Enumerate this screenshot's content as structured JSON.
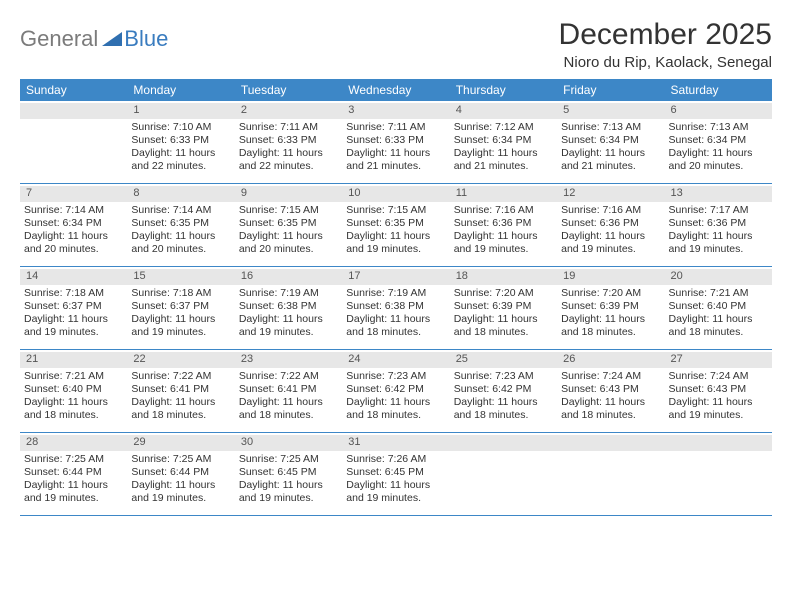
{
  "brand": {
    "gray": "General",
    "blue": "Blue"
  },
  "title": "December 2025",
  "location": "Nioro du Rip, Kaolack, Senegal",
  "colors": {
    "header_bg": "#3d87c7",
    "daynum_bg": "#e7e7e7",
    "border": "#3d87c7",
    "logo_gray": "#7b7b7b",
    "logo_blue": "#3a7cbf"
  },
  "dow": [
    "Sunday",
    "Monday",
    "Tuesday",
    "Wednesday",
    "Thursday",
    "Friday",
    "Saturday"
  ],
  "weeks": [
    [
      {
        "n": "",
        "sr": "",
        "ss": "",
        "dl": ""
      },
      {
        "n": "1",
        "sr": "Sunrise: 7:10 AM",
        "ss": "Sunset: 6:33 PM",
        "dl": "Daylight: 11 hours and 22 minutes."
      },
      {
        "n": "2",
        "sr": "Sunrise: 7:11 AM",
        "ss": "Sunset: 6:33 PM",
        "dl": "Daylight: 11 hours and 22 minutes."
      },
      {
        "n": "3",
        "sr": "Sunrise: 7:11 AM",
        "ss": "Sunset: 6:33 PM",
        "dl": "Daylight: 11 hours and 21 minutes."
      },
      {
        "n": "4",
        "sr": "Sunrise: 7:12 AM",
        "ss": "Sunset: 6:34 PM",
        "dl": "Daylight: 11 hours and 21 minutes."
      },
      {
        "n": "5",
        "sr": "Sunrise: 7:13 AM",
        "ss": "Sunset: 6:34 PM",
        "dl": "Daylight: 11 hours and 21 minutes."
      },
      {
        "n": "6",
        "sr": "Sunrise: 7:13 AM",
        "ss": "Sunset: 6:34 PM",
        "dl": "Daylight: 11 hours and 20 minutes."
      }
    ],
    [
      {
        "n": "7",
        "sr": "Sunrise: 7:14 AM",
        "ss": "Sunset: 6:34 PM",
        "dl": "Daylight: 11 hours and 20 minutes."
      },
      {
        "n": "8",
        "sr": "Sunrise: 7:14 AM",
        "ss": "Sunset: 6:35 PM",
        "dl": "Daylight: 11 hours and 20 minutes."
      },
      {
        "n": "9",
        "sr": "Sunrise: 7:15 AM",
        "ss": "Sunset: 6:35 PM",
        "dl": "Daylight: 11 hours and 20 minutes."
      },
      {
        "n": "10",
        "sr": "Sunrise: 7:15 AM",
        "ss": "Sunset: 6:35 PM",
        "dl": "Daylight: 11 hours and 19 minutes."
      },
      {
        "n": "11",
        "sr": "Sunrise: 7:16 AM",
        "ss": "Sunset: 6:36 PM",
        "dl": "Daylight: 11 hours and 19 minutes."
      },
      {
        "n": "12",
        "sr": "Sunrise: 7:16 AM",
        "ss": "Sunset: 6:36 PM",
        "dl": "Daylight: 11 hours and 19 minutes."
      },
      {
        "n": "13",
        "sr": "Sunrise: 7:17 AM",
        "ss": "Sunset: 6:36 PM",
        "dl": "Daylight: 11 hours and 19 minutes."
      }
    ],
    [
      {
        "n": "14",
        "sr": "Sunrise: 7:18 AM",
        "ss": "Sunset: 6:37 PM",
        "dl": "Daylight: 11 hours and 19 minutes."
      },
      {
        "n": "15",
        "sr": "Sunrise: 7:18 AM",
        "ss": "Sunset: 6:37 PM",
        "dl": "Daylight: 11 hours and 19 minutes."
      },
      {
        "n": "16",
        "sr": "Sunrise: 7:19 AM",
        "ss": "Sunset: 6:38 PM",
        "dl": "Daylight: 11 hours and 19 minutes."
      },
      {
        "n": "17",
        "sr": "Sunrise: 7:19 AM",
        "ss": "Sunset: 6:38 PM",
        "dl": "Daylight: 11 hours and 18 minutes."
      },
      {
        "n": "18",
        "sr": "Sunrise: 7:20 AM",
        "ss": "Sunset: 6:39 PM",
        "dl": "Daylight: 11 hours and 18 minutes."
      },
      {
        "n": "19",
        "sr": "Sunrise: 7:20 AM",
        "ss": "Sunset: 6:39 PM",
        "dl": "Daylight: 11 hours and 18 minutes."
      },
      {
        "n": "20",
        "sr": "Sunrise: 7:21 AM",
        "ss": "Sunset: 6:40 PM",
        "dl": "Daylight: 11 hours and 18 minutes."
      }
    ],
    [
      {
        "n": "21",
        "sr": "Sunrise: 7:21 AM",
        "ss": "Sunset: 6:40 PM",
        "dl": "Daylight: 11 hours and 18 minutes."
      },
      {
        "n": "22",
        "sr": "Sunrise: 7:22 AM",
        "ss": "Sunset: 6:41 PM",
        "dl": "Daylight: 11 hours and 18 minutes."
      },
      {
        "n": "23",
        "sr": "Sunrise: 7:22 AM",
        "ss": "Sunset: 6:41 PM",
        "dl": "Daylight: 11 hours and 18 minutes."
      },
      {
        "n": "24",
        "sr": "Sunrise: 7:23 AM",
        "ss": "Sunset: 6:42 PM",
        "dl": "Daylight: 11 hours and 18 minutes."
      },
      {
        "n": "25",
        "sr": "Sunrise: 7:23 AM",
        "ss": "Sunset: 6:42 PM",
        "dl": "Daylight: 11 hours and 18 minutes."
      },
      {
        "n": "26",
        "sr": "Sunrise: 7:24 AM",
        "ss": "Sunset: 6:43 PM",
        "dl": "Daylight: 11 hours and 18 minutes."
      },
      {
        "n": "27",
        "sr": "Sunrise: 7:24 AM",
        "ss": "Sunset: 6:43 PM",
        "dl": "Daylight: 11 hours and 19 minutes."
      }
    ],
    [
      {
        "n": "28",
        "sr": "Sunrise: 7:25 AM",
        "ss": "Sunset: 6:44 PM",
        "dl": "Daylight: 11 hours and 19 minutes."
      },
      {
        "n": "29",
        "sr": "Sunrise: 7:25 AM",
        "ss": "Sunset: 6:44 PM",
        "dl": "Daylight: 11 hours and 19 minutes."
      },
      {
        "n": "30",
        "sr": "Sunrise: 7:25 AM",
        "ss": "Sunset: 6:45 PM",
        "dl": "Daylight: 11 hours and 19 minutes."
      },
      {
        "n": "31",
        "sr": "Sunrise: 7:26 AM",
        "ss": "Sunset: 6:45 PM",
        "dl": "Daylight: 11 hours and 19 minutes."
      },
      {
        "n": "",
        "sr": "",
        "ss": "",
        "dl": ""
      },
      {
        "n": "",
        "sr": "",
        "ss": "",
        "dl": ""
      },
      {
        "n": "",
        "sr": "",
        "ss": "",
        "dl": ""
      }
    ]
  ]
}
